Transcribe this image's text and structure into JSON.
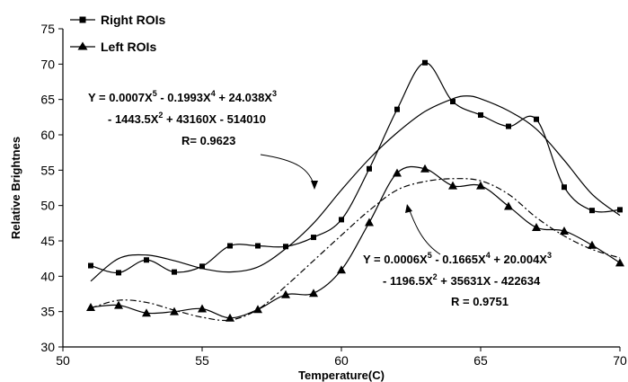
{
  "chart_data": {
    "type": "line",
    "xlabel": "Temperature(C)",
    "ylabel": "Relative Brightnes",
    "xlim": [
      50,
      70
    ],
    "ylim": [
      30,
      75
    ],
    "x_ticks": [
      "50",
      "55",
      "60",
      "65",
      "70"
    ],
    "y_ticks": [
      "30",
      "35",
      "40",
      "45",
      "50",
      "55",
      "60",
      "65",
      "70",
      "75"
    ],
    "grid": false,
    "legend_position": "top-left",
    "series": [
      {
        "name": "Right ROIs",
        "marker": "square",
        "color": "#000000",
        "x": [
          51,
          52,
          53,
          54,
          55,
          56,
          57,
          58,
          59,
          60,
          61,
          62,
          63,
          64,
          65,
          66,
          67,
          68,
          69,
          70
        ],
        "y": [
          41.5,
          40.5,
          42.3,
          40.6,
          41.4,
          44.3,
          44.3,
          44.2,
          45.5,
          48.0,
          55.2,
          63.6,
          70.2,
          64.7,
          62.8,
          61.2,
          62.2,
          52.6,
          49.3,
          49.4
        ]
      },
      {
        "name": "Left ROIs",
        "marker": "triangle",
        "color": "#000000",
        "x": [
          51,
          52,
          53,
          54,
          55,
          56,
          57,
          58,
          59,
          60,
          61,
          62,
          63,
          64,
          65,
          66,
          67,
          68,
          69,
          70
        ],
        "y": [
          35.6,
          35.9,
          34.8,
          35.0,
          35.4,
          34.1,
          35.3,
          37.4,
          37.6,
          40.9,
          47.6,
          54.6,
          55.2,
          52.8,
          52.8,
          49.9,
          46.9,
          46.4,
          44.4,
          41.9
        ]
      }
    ],
    "trendlines": [
      {
        "series": "Right ROIs",
        "style": "solid",
        "x": [
          51,
          52,
          53,
          54,
          55,
          56,
          57,
          58,
          59,
          60,
          61,
          62,
          63,
          64,
          64.5,
          65,
          66,
          67,
          68,
          69,
          70
        ],
        "y": [
          39.3,
          42.5,
          43.0,
          42.2,
          41.1,
          40.6,
          41.3,
          43.9,
          47.5,
          52.2,
          56.6,
          60.3,
          63.3,
          65.1,
          65.5,
          65.1,
          63.4,
          60.8,
          56.4,
          51.6,
          48.6
        ]
      },
      {
        "series": "Left ROIs",
        "style": "dash-dot",
        "x": [
          51,
          52,
          53,
          54,
          55,
          56,
          57,
          58,
          59,
          60,
          61,
          62,
          63,
          64,
          65,
          66,
          67,
          68,
          69,
          70
        ],
        "y": [
          35.5,
          36.6,
          36.3,
          35.2,
          34.2,
          33.8,
          35.3,
          38.6,
          42.2,
          45.8,
          49.3,
          52.2,
          53.4,
          53.8,
          53.5,
          51.6,
          48.3,
          45.7,
          43.8,
          42.6
        ]
      }
    ],
    "annotations": {
      "right_eq_line1": "Y = 0.0007X",
      "right_eq_exp5": "5",
      "right_eq_mid1": " - 0.1993X",
      "right_eq_exp4": "4",
      "right_eq_mid2": " + 24.038X",
      "right_eq_exp3": "3",
      "right_eq_line2a": "- 1443.5X",
      "right_eq_exp2": "2",
      "right_eq_line2b": " + 43160X - 514010",
      "right_r": "R= 0.9623",
      "left_eq_line1": "Y = 0.0006X",
      "left_eq_exp5": "5",
      "left_eq_mid1": " - 0.1665X",
      "left_eq_exp4": "4",
      "left_eq_mid2": " + 20.004X",
      "left_eq_exp3": "3",
      "left_eq_line2a": "- 1196.5X",
      "left_eq_exp2": "2",
      "left_eq_line2b": " + 35631X - 422634",
      "left_r": "R = 0.9751"
    }
  }
}
